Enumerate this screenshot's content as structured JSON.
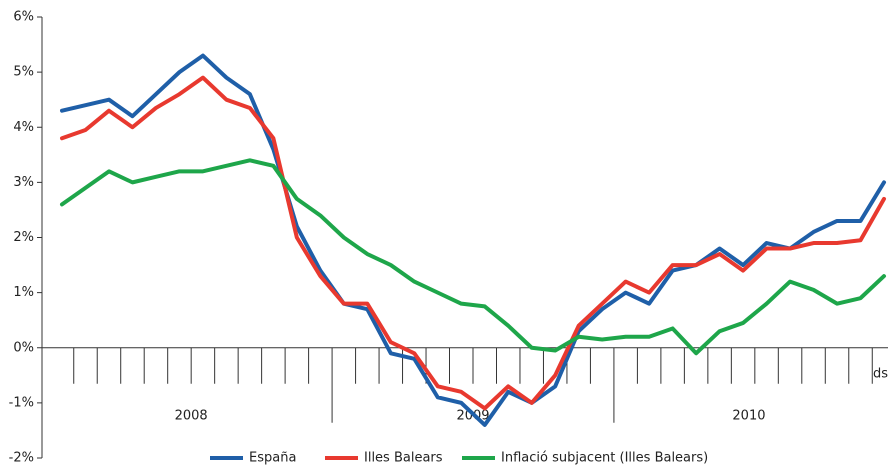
{
  "chart_data": {
    "type": "line",
    "categories": [
      null,
      null,
      null,
      null,
      null,
      null,
      null,
      null,
      null,
      null,
      null,
      null,
      null,
      null,
      null,
      null,
      null,
      null,
      null,
      null,
      null,
      null,
      null,
      null,
      null,
      null,
      null,
      null,
      null,
      null,
      null,
      null,
      null,
      null,
      null,
      "ds"
    ],
    "year_labels": [
      "2008",
      "2009",
      "2010"
    ],
    "series": [
      {
        "name": "España",
        "color": "#1f5fa8",
        "values": [
          4.3,
          4.4,
          4.5,
          4.2,
          4.6,
          5.0,
          5.3,
          4.9,
          4.6,
          3.6,
          2.2,
          1.4,
          0.8,
          0.7,
          -0.1,
          -0.2,
          -0.9,
          -1.0,
          -1.4,
          -0.8,
          -1.0,
          -0.7,
          0.3,
          0.7,
          1.0,
          0.8,
          1.4,
          1.5,
          1.8,
          1.5,
          1.9,
          1.8,
          2.1,
          2.3,
          2.3,
          3.0
        ]
      },
      {
        "name": "Illes Balears",
        "color": "#e8392f",
        "values": [
          3.8,
          3.95,
          4.3,
          4.0,
          4.35,
          4.6,
          4.9,
          4.5,
          4.35,
          3.8,
          2.0,
          1.3,
          0.8,
          0.8,
          0.1,
          -0.1,
          -0.7,
          -0.8,
          -1.1,
          -0.7,
          -1.0,
          -0.5,
          0.4,
          0.8,
          1.2,
          1.0,
          1.5,
          1.5,
          1.7,
          1.4,
          1.8,
          1.8,
          1.9,
          1.9,
          1.95,
          2.7
        ]
      },
      {
        "name": "Inflació subjacent (Illes Balears)",
        "color": "#1ea64a",
        "values": [
          2.6,
          2.9,
          3.2,
          3.0,
          3.1,
          3.2,
          3.2,
          3.3,
          3.4,
          3.3,
          2.7,
          2.4,
          2.0,
          1.7,
          1.5,
          1.2,
          1.0,
          0.8,
          0.75,
          0.4,
          0.0,
          -0.05,
          0.2,
          0.15,
          0.2,
          0.2,
          0.35,
          -0.1,
          0.3,
          0.45,
          0.8,
          1.2,
          1.05,
          0.8,
          0.9,
          1.3
        ]
      }
    ],
    "ylim": [
      -2,
      6
    ],
    "yticks": [
      {
        "value": -2,
        "label": "-2%"
      },
      {
        "value": -1,
        "label": "-1%"
      },
      {
        "value": 0,
        "label": "0%"
      },
      {
        "value": 1,
        "label": "1%"
      },
      {
        "value": 2,
        "label": "2%"
      },
      {
        "value": 3,
        "label": "3%"
      },
      {
        "value": 4,
        "label": "4%"
      },
      {
        "value": 5,
        "label": "5%"
      },
      {
        "value": 6,
        "label": "6%"
      }
    ],
    "legend": "bottom"
  }
}
